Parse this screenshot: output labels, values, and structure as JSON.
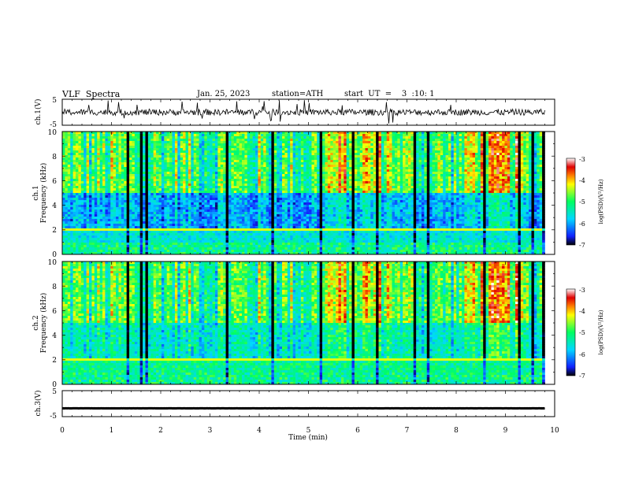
{
  "header": {
    "title": "VLF  Spectra",
    "date": "Jan. 25, 2023",
    "station": "station=ATH",
    "start": "start  UT  =    3  :10: 1"
  },
  "colors": {
    "background": "#ffffff",
    "axis": "#000000",
    "colormap": [
      "#000000",
      "#1020ff",
      "#00d8ff",
      "#00ff60",
      "#ffff00",
      "#ff8000",
      "#e00000",
      "#ffffff"
    ]
  },
  "chart_data": [
    {
      "id": "ch1-waveform",
      "type": "line",
      "ylabel": "ch.1(V)",
      "ylim": [
        -5,
        5
      ],
      "y_tick_labels": [
        "5",
        "-5"
      ],
      "x_range": [
        0,
        9.8
      ],
      "series": [
        {
          "level": 0,
          "amplitude": 1.2,
          "color": "#000000"
        }
      ]
    },
    {
      "id": "ch1-spectrogram",
      "type": "heatmap",
      "ylabel": "Frequency  (kHz)",
      "channel_label": "ch.1",
      "ylim": [
        0,
        10
      ],
      "y_tick_labels": [
        "0",
        "2",
        "4",
        "6",
        "8",
        "10"
      ],
      "x_range": [
        0,
        9.8
      ],
      "colorbar": {
        "label": "log(PSD)(V²/Hz)",
        "range": [
          -7,
          -3
        ],
        "tick_labels": [
          "-3",
          "-4",
          "-5",
          "-6",
          "-7"
        ]
      }
    },
    {
      "id": "ch2-spectrogram",
      "type": "heatmap",
      "ylabel": "Frequency  (kHz)",
      "channel_label": "ch.2",
      "ylim": [
        0,
        10
      ],
      "y_tick_labels": [
        "0",
        "2",
        "4",
        "6",
        "8",
        "10"
      ],
      "x_range": [
        0,
        9.8
      ],
      "colorbar": {
        "label": "log(PSD)(V²/Hz)",
        "range": [
          -7,
          -3
        ],
        "tick_labels": [
          "-3",
          "-4",
          "-5",
          "-6",
          "-7"
        ]
      }
    },
    {
      "id": "ch3-waveform",
      "type": "line",
      "ylabel": "ch.3(V)",
      "ylim": [
        -5,
        5
      ],
      "y_tick_labels": [
        "5",
        "-5"
      ],
      "x_range": [
        0,
        9.8
      ],
      "series": [
        {
          "level": -1.8,
          "amplitude": 0.1,
          "color": "#000000"
        }
      ]
    }
  ],
  "x_axis": {
    "label": "Time  (min)",
    "xlim": [
      0,
      10
    ],
    "tick_labels": [
      "0",
      "1",
      "2",
      "3",
      "4",
      "5",
      "6",
      "7",
      "8",
      "9",
      "10"
    ]
  }
}
